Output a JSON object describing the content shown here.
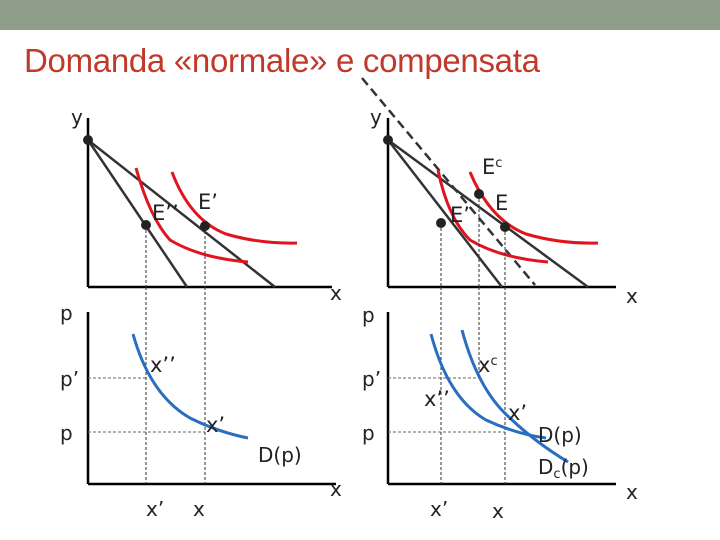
{
  "title": "Domanda «normale» e compensata",
  "colors": {
    "accent": "#c0392b",
    "header_bar": "#8f9e8b",
    "indifference": "#e0141e",
    "demand": "#2a6fbf",
    "axis": "#000000"
  },
  "left_top": {
    "y_label": "y",
    "x_label": "x",
    "points": {
      "e2": "E’’",
      "e1": "E’"
    }
  },
  "right_top": {
    "y_label": "y",
    "x_label": "x",
    "points": {
      "ec": "E",
      "ec_sub": "c",
      "e1": "E’",
      "e": "E"
    }
  },
  "left_bottom": {
    "p_label": "p",
    "p1_label": "p’",
    "p0_label": "p",
    "x2_label": "x’’",
    "x1_label": "x’",
    "xt1": "x’",
    "xt0": "x",
    "curve": "D(p)",
    "x_axis": "x"
  },
  "right_bottom": {
    "p_label": "p",
    "p1_label": "p’",
    "p0_label": "p",
    "xc_main": "x",
    "xc_sub": "c",
    "x2_label": "x’’",
    "x1_label": "x’",
    "curve_d": "D(p)",
    "curve_dc_main": "D",
    "curve_dc_sub": "c",
    "curve_dc_end": "(p)",
    "xt1": "x’",
    "xt0": "x",
    "x_axis": "x"
  }
}
